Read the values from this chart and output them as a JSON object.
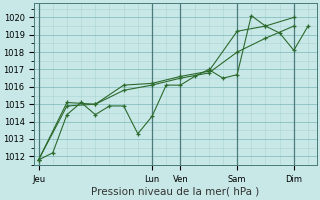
{
  "background_color": "#c8e8e8",
  "grid_color": "#88bfbf",
  "grid_color_minor": "#a8d4d4",
  "line_color": "#2d6a2d",
  "marker_color": "#2d6a2d",
  "xlabel": "Pression niveau de la mer( hPa )",
  "ylim": [
    1011.5,
    1020.8
  ],
  "yticks": [
    1012,
    1013,
    1014,
    1015,
    1016,
    1017,
    1018,
    1019,
    1020
  ],
  "x_tick_labels": [
    "Jeu",
    "Lun",
    "Ven",
    "Sam",
    "Dim"
  ],
  "x_tick_positions": [
    0,
    4,
    5,
    7,
    9
  ],
  "xlim": [
    -0.15,
    9.8
  ],
  "series1_x": [
    0.0,
    0.5,
    1.0,
    1.5,
    2.0,
    2.5,
    3.0,
    3.5,
    4.0,
    4.5,
    5.0,
    5.5,
    6.0,
    6.5,
    7.0,
    7.5,
    8.0,
    8.5,
    9.0,
    9.5
  ],
  "series1_y": [
    1011.8,
    1012.2,
    1014.4,
    1015.1,
    1014.4,
    1014.9,
    1014.9,
    1013.3,
    1014.3,
    1016.1,
    1016.1,
    1016.6,
    1017.0,
    1016.5,
    1016.7,
    1020.1,
    1019.5,
    1019.1,
    1018.1,
    1019.5
  ],
  "series2_x": [
    0.0,
    1.0,
    2.0,
    3.0,
    4.0,
    5.0,
    6.0,
    7.0,
    8.0,
    9.0
  ],
  "series2_y": [
    1011.8,
    1014.9,
    1015.0,
    1015.8,
    1016.1,
    1016.5,
    1016.8,
    1018.0,
    1018.8,
    1019.5
  ],
  "series3_x": [
    0.0,
    1.0,
    2.0,
    3.0,
    4.0,
    5.0,
    6.0,
    7.0,
    8.0,
    9.0
  ],
  "series3_y": [
    1011.8,
    1015.1,
    1015.0,
    1016.1,
    1016.2,
    1016.6,
    1016.9,
    1019.2,
    1019.5,
    1020.0
  ],
  "vline_positions": [
    0,
    4,
    5,
    7,
    9
  ],
  "vline_color": "#4a7a7a",
  "tick_fontsize": 6,
  "xlabel_fontsize": 7.5
}
